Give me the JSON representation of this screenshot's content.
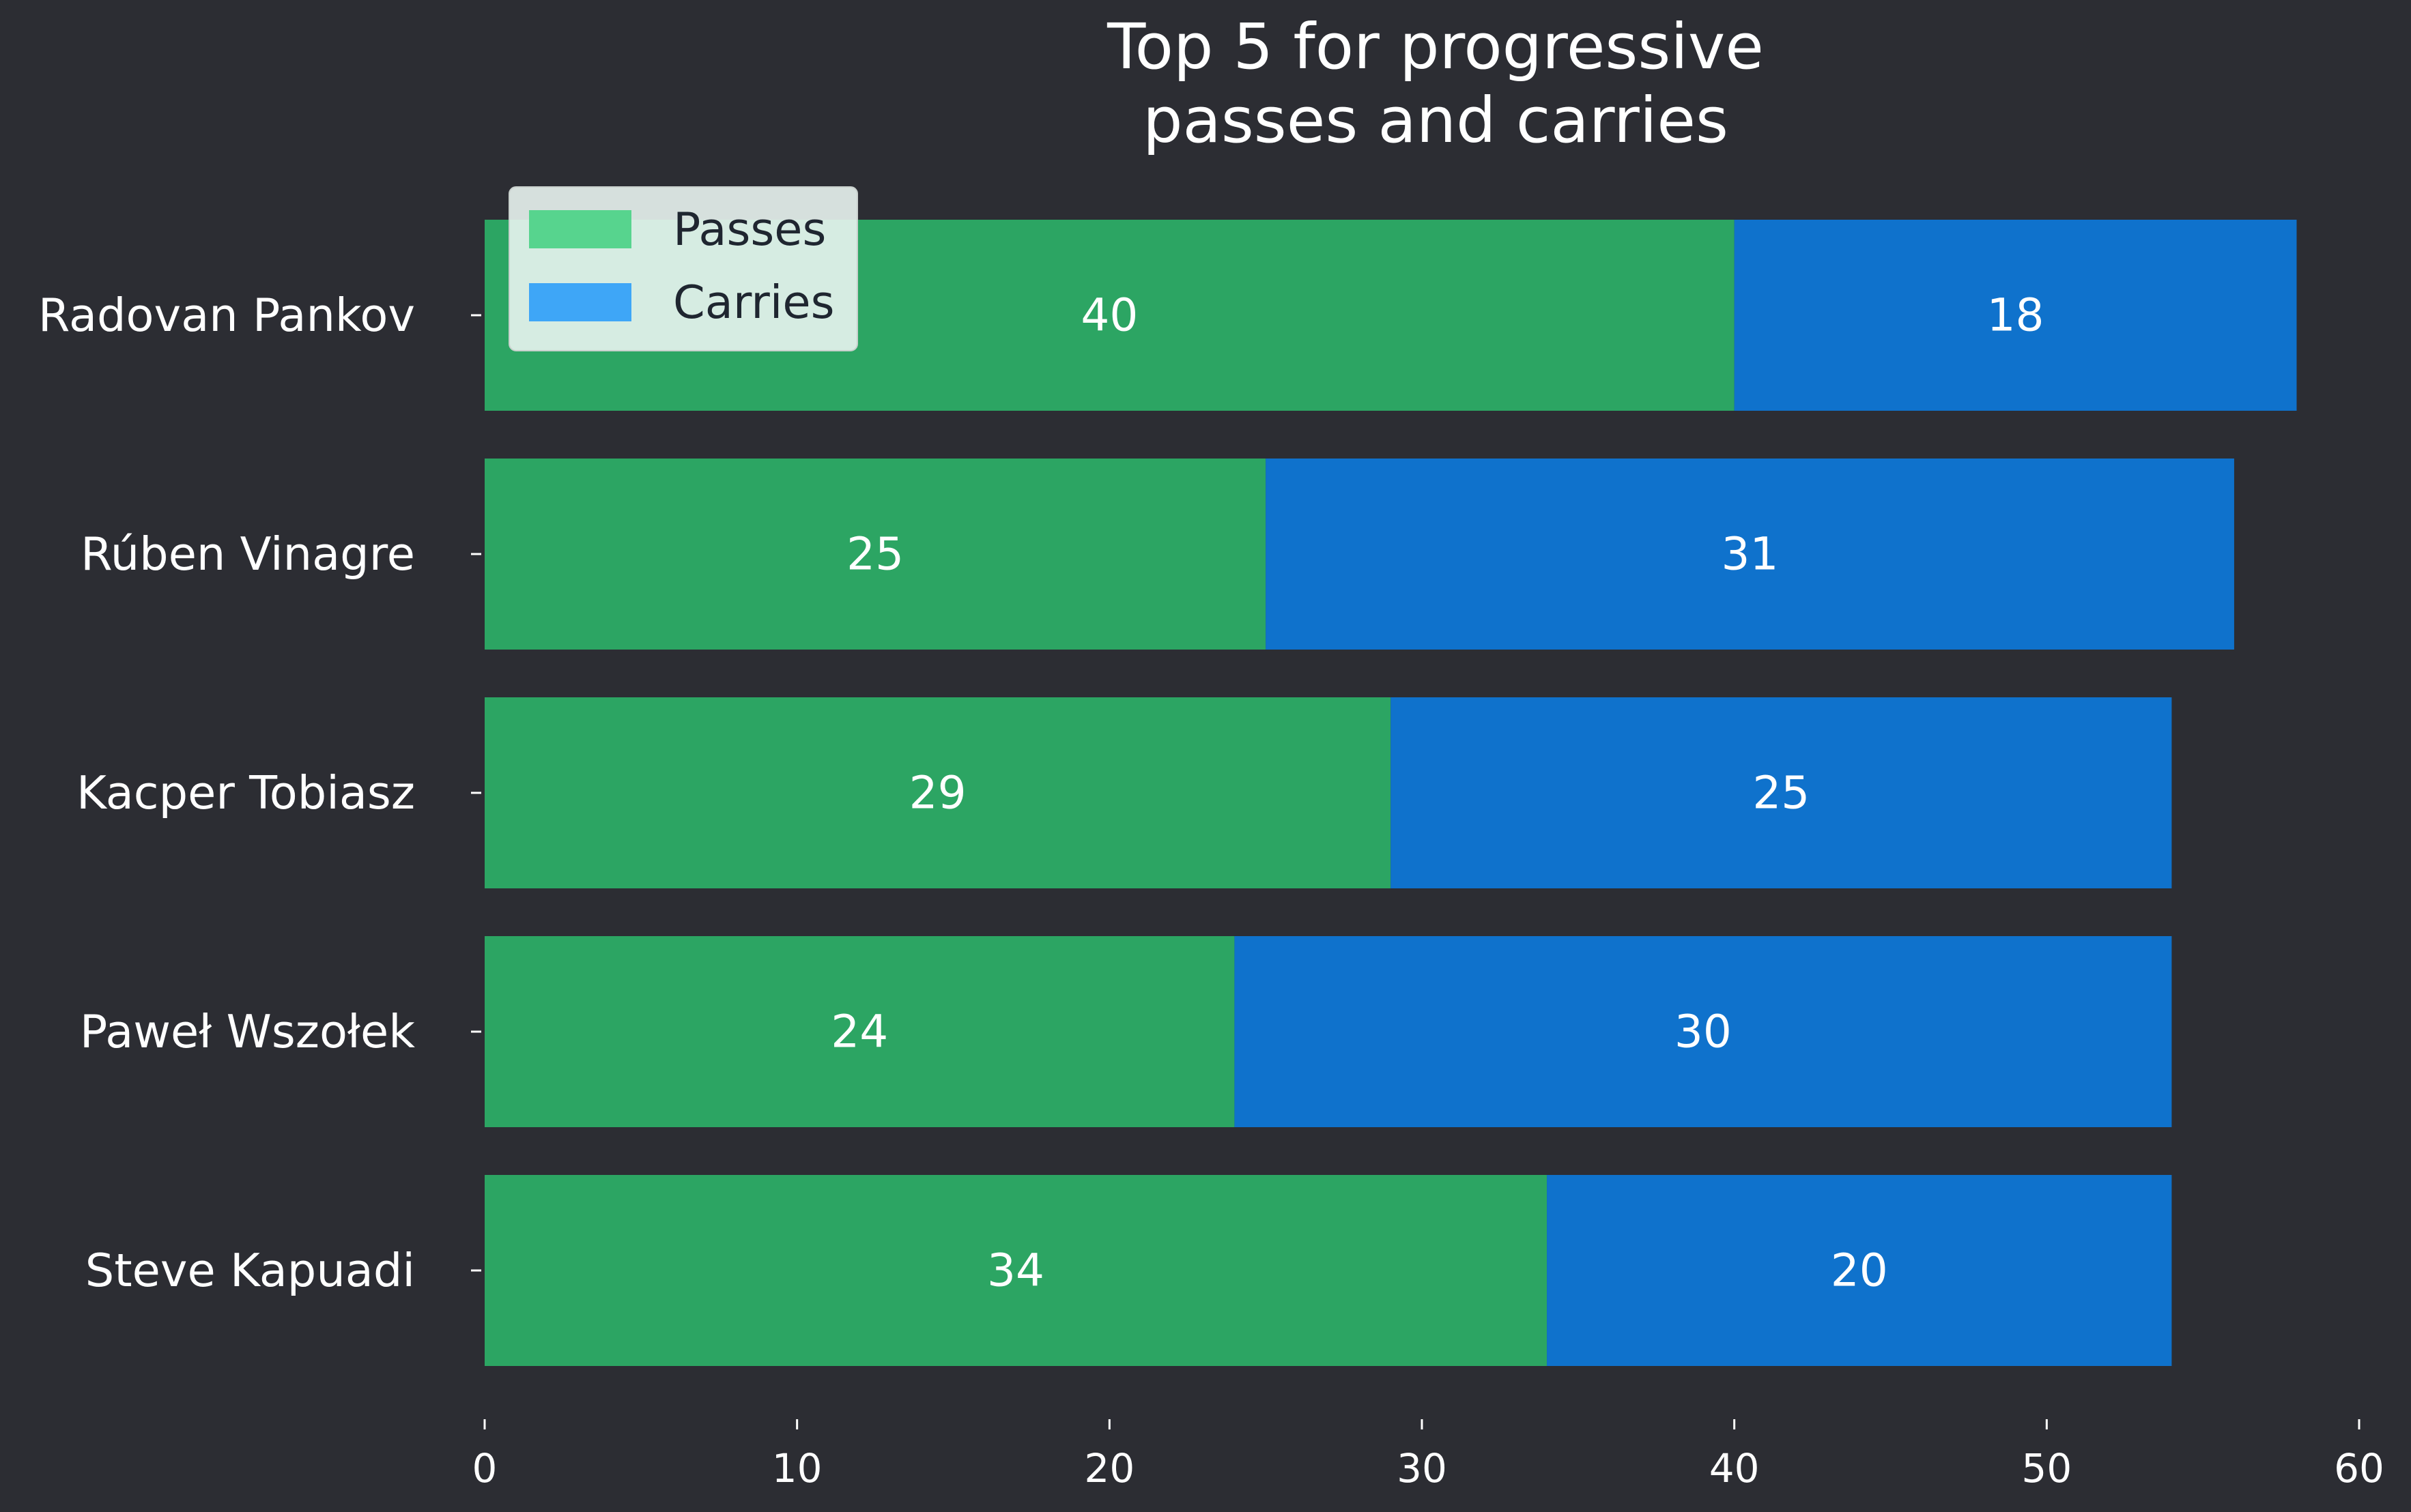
{
  "chart_data": {
    "type": "bar",
    "orientation": "horizontal",
    "stacked": true,
    "title_lines": [
      "Top 5 for progressive",
      "passes and carries"
    ],
    "categories": [
      "Radovan Pankov",
      "Rúben Vinagre",
      "Kacper Tobiasz",
      "Paweł Wszołek",
      "Steve Kapuadi"
    ],
    "series": [
      {
        "name": "Passes",
        "values": [
          40,
          25,
          29,
          24,
          34
        ],
        "color": "#2ca563",
        "legend_color": "#57d48e"
      },
      {
        "name": "Carries",
        "values": [
          18,
          31,
          25,
          30,
          20
        ],
        "color": "#0f72cc",
        "legend_color": "#3ea6f7"
      }
    ],
    "xlim": [
      0,
      60
    ],
    "xticks": [
      0,
      10,
      20,
      30,
      40,
      50,
      60
    ],
    "xlabel": "",
    "ylabel": "",
    "grid": false,
    "legend": "top-left",
    "background": "#2c2d33"
  }
}
